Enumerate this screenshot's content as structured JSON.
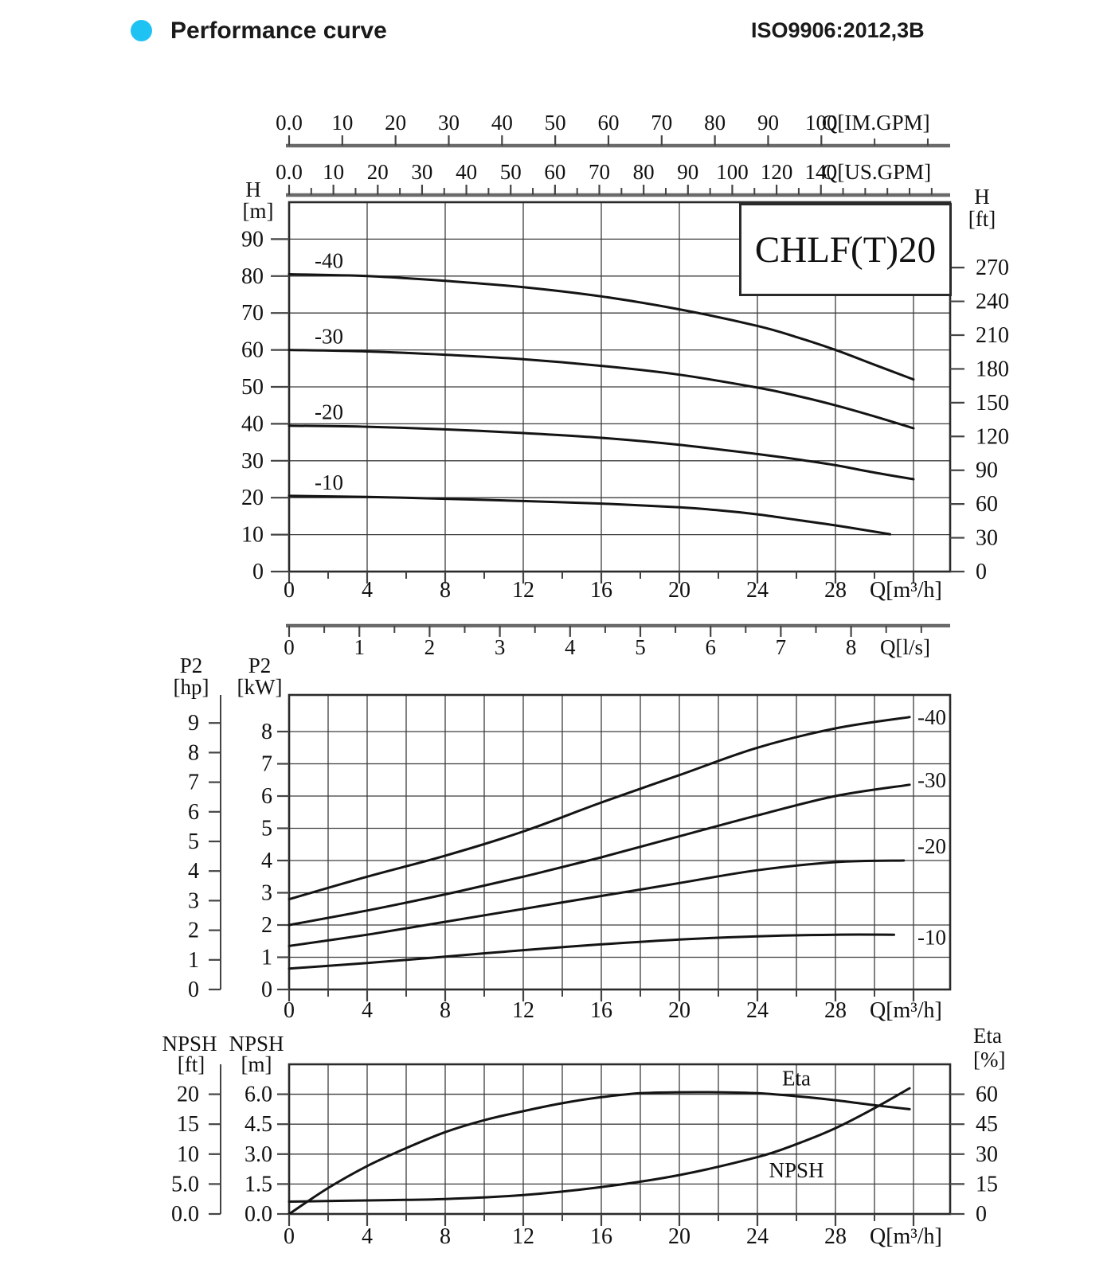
{
  "header": {
    "title": "Performance curve",
    "standard": "ISO9906:2012,3B",
    "bullet_color": "#1fc3f3"
  },
  "model_label": "CHLF(T)20",
  "colors": {
    "curve": "#141414",
    "grid": "#3d3d3d",
    "frame": "#2a2a2a",
    "axis_bar": "#6a6a6a",
    "tick": "#444444",
    "text": "#111111",
    "bg": "#ffffff"
  },
  "flow_axes": {
    "im": {
      "label": "Q[IM.GPM]",
      "tick_labels": [
        "0.0",
        "10",
        "20",
        "30",
        "40",
        "50",
        "60",
        "70",
        "80",
        "90",
        "100"
      ],
      "tick_values": [
        0,
        10,
        20,
        30,
        40,
        50,
        60,
        70,
        80,
        90,
        100
      ],
      "unlabeled_tick_values": [
        110,
        120
      ],
      "m3h_per_unit": 0.27277
    },
    "us": {
      "label": "Q[US.GPM]",
      "tick_labels": [
        "0.0",
        "10",
        "20",
        "30",
        "40",
        "50",
        "60",
        "70",
        "80",
        "90",
        "100",
        "120",
        "140"
      ],
      "tick_values": [
        0,
        10,
        20,
        30,
        40,
        50,
        60,
        70,
        80,
        90,
        100,
        120,
        140
      ],
      "m3h_per_unit": 0.22712
    },
    "ls": {
      "label": "Q[l/s]",
      "tick_labels": [
        "0",
        "1",
        "2",
        "3",
        "4",
        "5",
        "6",
        "7",
        "8"
      ],
      "tick_values": [
        0,
        1,
        2,
        3,
        4,
        5,
        6,
        7,
        8
      ],
      "m3h_per_unit": 3.6
    }
  },
  "x_axis": {
    "unit_label": "Q[m³/h]",
    "major_tick_labels": [
      "0",
      "4",
      "8",
      "12",
      "16",
      "20",
      "24",
      "28"
    ],
    "major_tick_values": [
      0,
      4,
      8,
      12,
      16,
      20,
      24,
      28
    ],
    "minor_tick_values": [
      2,
      6,
      10,
      14,
      18,
      22,
      26,
      30
    ],
    "edge_tick_value": 32
  },
  "chart_data": [
    {
      "id": "head",
      "type": "line",
      "title": "CHLF(T)20",
      "xlabel": "Q[m³/h]",
      "ylabel_left": [
        "H",
        "[m]"
      ],
      "ylabel_right": [
        "H",
        "[ft]"
      ],
      "y_m_ticks": [
        0,
        10,
        20,
        30,
        40,
        50,
        60,
        70,
        80,
        90
      ],
      "ylim_m": [
        0,
        100
      ],
      "y_ft_ticks": [
        0,
        30,
        60,
        90,
        120,
        150,
        180,
        210,
        240,
        270
      ],
      "grid_x_step_m3h": 4,
      "series": [
        {
          "name": "-40",
          "points": [
            [
              0,
              80.5
            ],
            [
              4,
              80
            ],
            [
              8,
              78.7
            ],
            [
              12,
              77
            ],
            [
              16,
              74.5
            ],
            [
              20,
              71
            ],
            [
              24,
              66.5
            ],
            [
              26,
              63.5
            ],
            [
              28,
              60
            ],
            [
              30,
              56
            ],
            [
              32,
              52
            ]
          ]
        },
        {
          "name": "-30",
          "points": [
            [
              0,
              60
            ],
            [
              4,
              59.6
            ],
            [
              8,
              58.7
            ],
            [
              12,
              57.5
            ],
            [
              16,
              55.7
            ],
            [
              20,
              53.3
            ],
            [
              24,
              49.8
            ],
            [
              26,
              47.6
            ],
            [
              28,
              45
            ],
            [
              30,
              42
            ],
            [
              32,
              38.8
            ]
          ]
        },
        {
          "name": "-20",
          "points": [
            [
              0,
              39.5
            ],
            [
              4,
              39.2
            ],
            [
              8,
              38.5
            ],
            [
              12,
              37.5
            ],
            [
              16,
              36.2
            ],
            [
              20,
              34.3
            ],
            [
              24,
              31.8
            ],
            [
              26,
              30.4
            ],
            [
              28,
              28.8
            ],
            [
              30,
              26.8
            ],
            [
              32,
              25
            ]
          ]
        },
        {
          "name": "-10",
          "points": [
            [
              0,
              20.5
            ],
            [
              4,
              20.2
            ],
            [
              8,
              19.7
            ],
            [
              12,
              19.1
            ],
            [
              16,
              18.4
            ],
            [
              20,
              17.4
            ],
            [
              22,
              16.6
            ],
            [
              24,
              15.5
            ],
            [
              26,
              14
            ],
            [
              28,
              12.5
            ],
            [
              30,
              10.8
            ],
            [
              30.8,
              10.1
            ]
          ]
        }
      ]
    },
    {
      "id": "power",
      "type": "line",
      "xlabel": "Q[m³/h]",
      "ylabel_outer": [
        "P2",
        "[hp]"
      ],
      "ylabel_inner": [
        "P2",
        "[kW]"
      ],
      "y_kw_ticks": [
        0,
        1,
        2,
        3,
        4,
        5,
        6,
        7,
        8
      ],
      "y_hp_ticks": [
        0,
        1,
        2,
        3,
        4,
        5,
        6,
        7,
        8,
        9
      ],
      "ylim_kw": [
        0,
        9.1
      ],
      "grid_x_step_m3h": 2,
      "series": [
        {
          "name": "-40",
          "label_kw": 8.45,
          "points": [
            [
              0,
              2.8
            ],
            [
              4,
              3.5
            ],
            [
              8,
              4.15
            ],
            [
              12,
              4.9
            ],
            [
              16,
              5.8
            ],
            [
              20,
              6.65
            ],
            [
              24,
              7.5
            ],
            [
              28,
              8.1
            ],
            [
              31.8,
              8.45
            ]
          ]
        },
        {
          "name": "-30",
          "label_kw": 6.5,
          "points": [
            [
              0,
              2.0
            ],
            [
              4,
              2.45
            ],
            [
              8,
              2.95
            ],
            [
              12,
              3.5
            ],
            [
              16,
              4.1
            ],
            [
              20,
              4.75
            ],
            [
              24,
              5.4
            ],
            [
              28,
              6.0
            ],
            [
              31.8,
              6.35
            ]
          ]
        },
        {
          "name": "-20",
          "label_kw": 4.45,
          "points": [
            [
              0,
              1.35
            ],
            [
              4,
              1.7
            ],
            [
              8,
              2.1
            ],
            [
              12,
              2.5
            ],
            [
              16,
              2.9
            ],
            [
              20,
              3.3
            ],
            [
              24,
              3.7
            ],
            [
              28,
              3.95
            ],
            [
              31.5,
              4.0
            ]
          ]
        },
        {
          "name": "-10",
          "label_kw": 1.62,
          "points": [
            [
              0,
              0.65
            ],
            [
              4,
              0.82
            ],
            [
              8,
              1.02
            ],
            [
              12,
              1.22
            ],
            [
              16,
              1.4
            ],
            [
              20,
              1.55
            ],
            [
              24,
              1.65
            ],
            [
              28,
              1.7
            ],
            [
              31,
              1.7
            ]
          ]
        }
      ]
    },
    {
      "id": "npsh",
      "type": "line",
      "xlabel": "Q[m³/h]",
      "ylabel_outer": [
        "NPSH",
        "[ft]"
      ],
      "ylabel_inner": [
        "NPSH",
        "[m]"
      ],
      "ylabel_right": [
        "Eta",
        "[%]"
      ],
      "y_m_tick_labels": [
        "0.0",
        "1.5",
        "3.0",
        "4.5",
        "6.0"
      ],
      "y_m_tick_values": [
        0,
        1.5,
        3,
        4.5,
        6
      ],
      "y_ft_tick_labels": [
        "0.0",
        "5.0",
        "10",
        "15",
        "20"
      ],
      "y_ft_tick_values": [
        0,
        5,
        10,
        15,
        20
      ],
      "y_eta_tick_labels": [
        "0",
        "15",
        "30",
        "45",
        "60"
      ],
      "y_eta_tick_values": [
        0,
        15,
        30,
        45,
        60
      ],
      "ylim_m": [
        0,
        7.5
      ],
      "grid_x_step_m3h": 2,
      "series": [
        {
          "name": "Eta",
          "unit": "%",
          "points": [
            [
              0,
              0
            ],
            [
              2,
              13
            ],
            [
              4,
              24
            ],
            [
              6,
              33
            ],
            [
              8,
              41
            ],
            [
              10,
              47
            ],
            [
              12,
              51.5
            ],
            [
              14,
              55.5
            ],
            [
              16,
              58.5
            ],
            [
              18,
              60.5
            ],
            [
              20,
              61
            ],
            [
              22,
              61
            ],
            [
              24,
              60.5
            ],
            [
              26,
              59
            ],
            [
              28,
              57
            ],
            [
              30,
              54.5
            ],
            [
              31.8,
              52.5
            ]
          ]
        },
        {
          "name": "NPSH",
          "unit": "m",
          "points": [
            [
              0,
              0.62
            ],
            [
              4,
              0.68
            ],
            [
              8,
              0.75
            ],
            [
              12,
              0.95
            ],
            [
              16,
              1.35
            ],
            [
              20,
              1.95
            ],
            [
              24,
              2.85
            ],
            [
              26,
              3.5
            ],
            [
              28,
              4.3
            ],
            [
              30,
              5.3
            ],
            [
              31.8,
              6.3
            ]
          ]
        }
      ],
      "annotations": [
        {
          "text": "Eta",
          "q": 26,
          "m": 6.8
        },
        {
          "text": "NPSH",
          "q": 26,
          "m": 2.2
        }
      ]
    }
  ]
}
